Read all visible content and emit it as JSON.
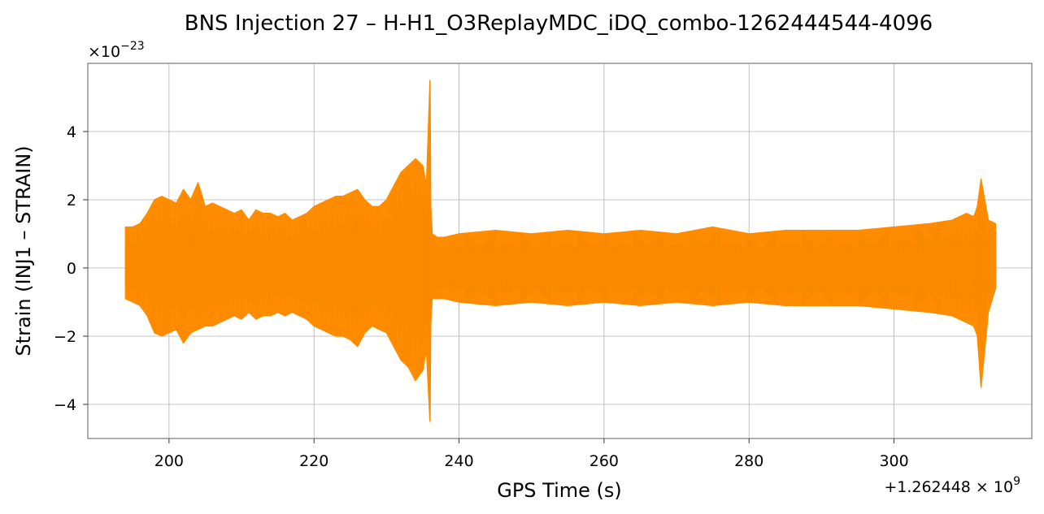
{
  "chart_data": {
    "type": "line",
    "title": "BNS Injection 27 – H-H1_O3ReplayMDC_iDQ_combo-1262444544-4096",
    "xlabel": "GPS Time (s)",
    "ylabel": "Strain (INJ1 – STRAIN)",
    "x_offset_label": "+1.262448 × 10",
    "x_offset_exp": "9",
    "y_scale_label": "×10",
    "y_scale_exp": "−23",
    "x_ticks": [
      200,
      220,
      240,
      260,
      280,
      300
    ],
    "x_tick_labels": [
      "200",
      "220",
      "240",
      "260",
      "280",
      "300"
    ],
    "y_ticks": [
      -4,
      -2,
      0,
      2,
      4
    ],
    "y_tick_labels": [
      "−4",
      "−2",
      "0",
      "2",
      "4"
    ],
    "xlim": [
      188.8,
      319.0
    ],
    "ylim": [
      -5.0,
      6.0
    ],
    "grid": true,
    "series": [
      {
        "color": "#ff8c00",
        "x": [
          194,
          195,
          196,
          197,
          198,
          199,
          200,
          201,
          202,
          203,
          204,
          205,
          206,
          207,
          208,
          209,
          210,
          211,
          212,
          213,
          214,
          215,
          216,
          217,
          218,
          219,
          220,
          221,
          222,
          223,
          224,
          225,
          226,
          227,
          228,
          229,
          230,
          231,
          232,
          233,
          234,
          235,
          235.5,
          236,
          236.1,
          236.3,
          237,
          238,
          240,
          245,
          250,
          255,
          260,
          265,
          270,
          275,
          280,
          285,
          290,
          295,
          300,
          305,
          308,
          310,
          311,
          311.5,
          312,
          313,
          314
        ],
        "y_max": [
          1.2,
          1.2,
          1.3,
          1.6,
          2.0,
          2.1,
          2.0,
          1.9,
          2.3,
          2.0,
          2.5,
          1.8,
          1.9,
          1.8,
          1.7,
          1.6,
          1.7,
          1.4,
          1.7,
          1.6,
          1.6,
          1.5,
          1.6,
          1.4,
          1.5,
          1.6,
          1.8,
          1.9,
          2.0,
          2.1,
          2.1,
          2.2,
          2.3,
          2.0,
          1.8,
          1.8,
          2.0,
          2.4,
          2.8,
          3.0,
          3.2,
          3.0,
          2.4,
          5.5,
          1.8,
          1.0,
          0.9,
          0.9,
          1.0,
          1.1,
          1.0,
          1.1,
          1.0,
          1.1,
          1.0,
          1.2,
          1.0,
          1.1,
          1.1,
          1.1,
          1.2,
          1.3,
          1.4,
          1.6,
          1.5,
          1.8,
          2.6,
          1.4,
          1.3
        ],
        "y_min": [
          -0.9,
          -1.0,
          -1.1,
          -1.4,
          -1.9,
          -2.0,
          -1.9,
          -1.8,
          -2.2,
          -1.9,
          -1.8,
          -1.7,
          -1.7,
          -1.6,
          -1.5,
          -1.4,
          -1.5,
          -1.3,
          -1.5,
          -1.4,
          -1.4,
          -1.3,
          -1.4,
          -1.3,
          -1.4,
          -1.5,
          -1.7,
          -1.8,
          -1.9,
          -2.0,
          -2.0,
          -2.1,
          -2.3,
          -1.9,
          -1.7,
          -1.8,
          -1.9,
          -2.3,
          -2.7,
          -2.9,
          -3.3,
          -3.0,
          -2.4,
          -4.5,
          -1.6,
          -0.9,
          -0.9,
          -0.9,
          -1.0,
          -1.1,
          -1.0,
          -1.1,
          -1.0,
          -1.1,
          -1.0,
          -1.1,
          -1.0,
          -1.1,
          -1.1,
          -1.1,
          -1.2,
          -1.3,
          -1.4,
          -1.6,
          -1.7,
          -2.0,
          -3.5,
          -1.3,
          -0.6
        ]
      }
    ]
  }
}
